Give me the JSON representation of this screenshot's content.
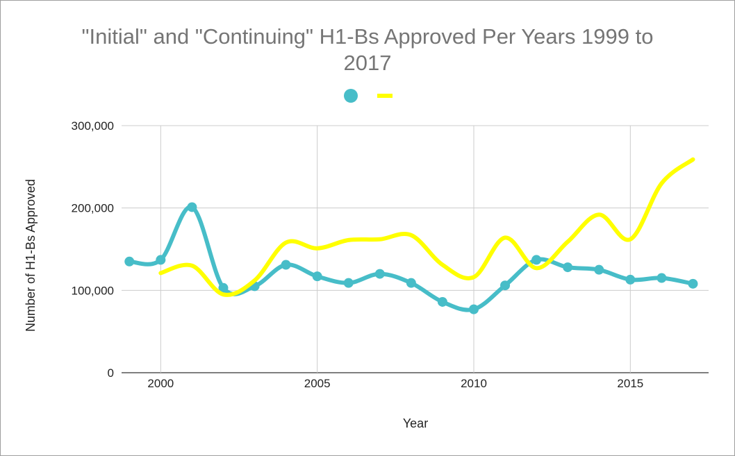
{
  "chart_data": {
    "type": "line",
    "title_line1": "\"Initial\" and \"Continuing\" H1-Bs Approved Per Years 1999 to",
    "title_line2": "2017",
    "xlabel": "Year",
    "ylabel": "Number of H1-Bs Approved",
    "xlim": [
      1998.75,
      2017.5
    ],
    "ylim": [
      0,
      300000
    ],
    "x_ticks": [
      2000,
      2005,
      2010,
      2015
    ],
    "x_tick_labels": [
      "2000",
      "2005",
      "2010",
      "2015"
    ],
    "y_ticks": [
      0,
      100000,
      200000,
      300000
    ],
    "y_tick_labels": [
      "0",
      "100,000",
      "200,000",
      "300,000"
    ],
    "grid": true,
    "legend_position": "top",
    "series": [
      {
        "color": "#47bdc8",
        "markers": true,
        "x": [
          1999,
          2000,
          2001,
          2002,
          2003,
          2004,
          2005,
          2006,
          2007,
          2008,
          2009,
          2010,
          2011,
          2012,
          2013,
          2014,
          2015,
          2016,
          2017
        ],
        "values": [
          135000,
          137000,
          201000,
          103000,
          105000,
          131000,
          117000,
          109000,
          120000,
          109000,
          86000,
          77000,
          106000,
          137000,
          128000,
          125000,
          113000,
          115000,
          108000
        ]
      },
      {
        "color": "#ffff00",
        "markers": false,
        "x": [
          2000,
          2001,
          2002,
          2003,
          2004,
          2005,
          2006,
          2007,
          2008,
          2009,
          2010,
          2011,
          2012,
          2013,
          2014,
          2015,
          2016,
          2017
        ],
        "values": [
          121000,
          130000,
          95000,
          112000,
          158000,
          151000,
          161000,
          162000,
          167000,
          131000,
          116000,
          164000,
          127000,
          159000,
          192000,
          162000,
          230000,
          259000
        ]
      }
    ]
  }
}
